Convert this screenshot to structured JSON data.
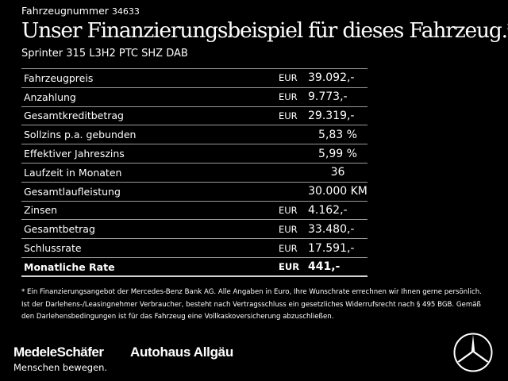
{
  "header": {
    "vehicle_label": "Fahrzeugnummer",
    "vehicle_number": "34633",
    "headline": "Unser Finanzierungsbeispiel für dieses Fahrzeug.*",
    "model": "Sprinter 315 L3H2 PTC SHZ DAB"
  },
  "rows": [
    {
      "label": "Fahrzeugpreis",
      "currency": "EUR",
      "value": "39.092,-"
    },
    {
      "label": "Anzahlung",
      "currency": "EUR",
      "value": "9.773,-"
    },
    {
      "label": "Gesamtkreditbetrag",
      "currency": "EUR",
      "value": "29.319,-"
    },
    {
      "label": "Sollzins p.a. gebunden",
      "currency": "",
      "value": "5,83 %"
    },
    {
      "label": "Effektiver Jahreszins",
      "currency": "",
      "value": "5,99 %"
    },
    {
      "label": "Laufzeit in Monaten",
      "currency": "",
      "value": "36"
    },
    {
      "label": "Gesamtlaufleistung",
      "currency": "",
      "value": "30.000 KM"
    },
    {
      "label": "Zinsen",
      "currency": "EUR",
      "value": "4.162,-"
    },
    {
      "label": "Gesamtbetrag",
      "currency": "EUR",
      "value": "33.480,-"
    },
    {
      "label": "Schlussrate",
      "currency": "EUR",
      "value": "17.591,-"
    },
    {
      "label": "Monatliche Rate",
      "currency": "EUR",
      "value": "441,-"
    }
  ],
  "footnote": "* Ein Finanzierungsangebot der Mercedes-Benz Bank AG. Alle Angaben in Euro, Ihre Wunschrate errechnen wir Ihnen gerne persönlich. Ist der Darlehens-/Leasingnehmer Verbraucher, besteht nach Vertragsschluss ein gesetzliches Widerrufsrecht nach § 495 BGB. Gemäß den Darlehensbedingungen ist für das Fahrzeug eine Vollkaskoversicherung abzuschließen.",
  "footer": {
    "dealer_logo": "MedeleSchäfer",
    "dealer_tagline": "Menschen bewegen.",
    "second_logo": "Autohaus Allgäu",
    "brand_icon": "mercedes-star-icon"
  }
}
